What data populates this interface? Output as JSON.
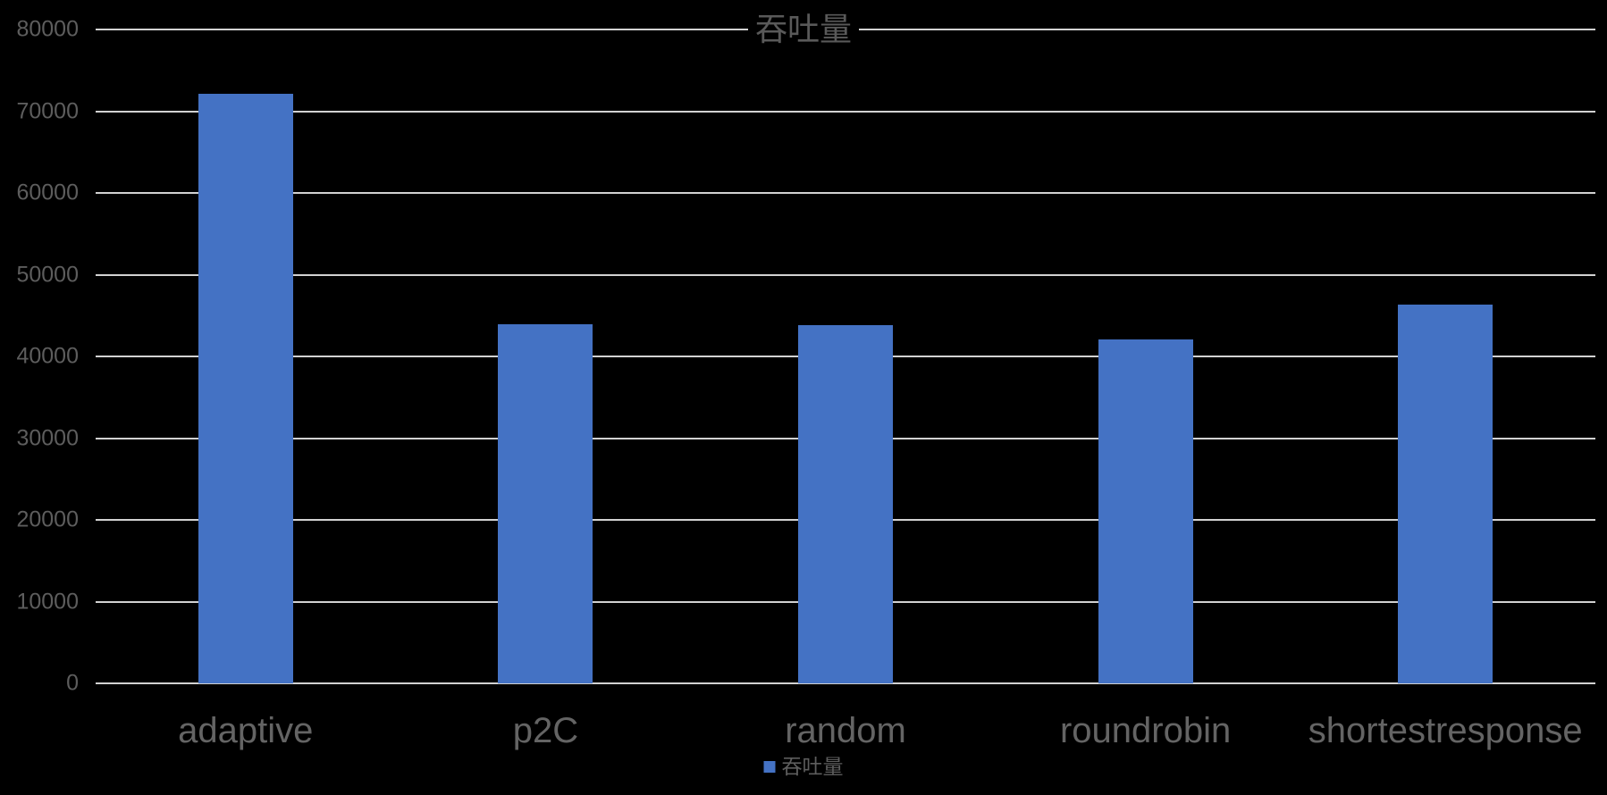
{
  "chart_data": {
    "type": "bar",
    "title": "吞吐量",
    "categories": [
      "adaptive",
      "p2C",
      "random",
      "roundrobin",
      "shortestresponse"
    ],
    "series": [
      {
        "name": "吞吐量",
        "values": [
          72100,
          43900,
          43800,
          42100,
          46300
        ]
      }
    ],
    "xlabel": "",
    "ylabel": "",
    "ylim": [
      0,
      80000
    ],
    "yticks": [
      0,
      10000,
      20000,
      30000,
      40000,
      50000,
      60000,
      70000,
      80000
    ],
    "grid": true,
    "legend_position": "bottom-center",
    "legend_label": "吞吐量",
    "colors": {
      "bar": "#4472C4",
      "gridline": "#D2D2D2",
      "axis_text": "#5d5d5d",
      "category_text": "#646464",
      "title_text": "#595959",
      "background": "#000000"
    }
  }
}
